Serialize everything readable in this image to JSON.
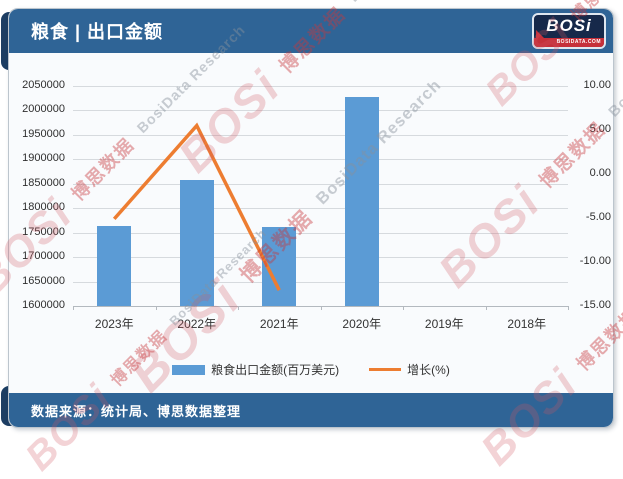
{
  "header": {
    "title": "粮食 | 出口金额"
  },
  "logo": {
    "text": "BOSi",
    "subtext": "BOSIDATA.COM"
  },
  "chart_data": {
    "type": "bar",
    "subtype": "bar+line combo, dual axis",
    "title": "粮食 | 出口金额",
    "categories": [
      "2023年",
      "2022年",
      "2021年",
      "2020年",
      "2019年",
      "2018年"
    ],
    "series": [
      {
        "name": "粮食出口金额(百万美元)",
        "type": "bar",
        "axis": "left",
        "color": "#5B9BD5",
        "values": [
          1763000,
          1858000,
          1761000,
          2028000,
          null,
          null
        ]
      },
      {
        "name": "增长(%)",
        "type": "line",
        "axis": "right",
        "color": "#ED7D31",
        "values": [
          -5.1,
          5.5,
          -13.2,
          null,
          null,
          null
        ]
      }
    ],
    "left_axis": {
      "min": 1600000,
      "max": 2050000,
      "step": 50000,
      "ticks": [
        "2050000",
        "2000000",
        "1950000",
        "1900000",
        "1850000",
        "1800000",
        "1750000",
        "1700000",
        "1650000",
        "1600000"
      ]
    },
    "right_axis": {
      "min": -15,
      "max": 10,
      "step": 5,
      "ticks": [
        "10.00",
        "5.00",
        "0.00",
        "-5.00",
        "-10.00",
        "-15.00"
      ]
    },
    "grid": true,
    "legend_position": "bottom"
  },
  "legend": {
    "bar_label": "粮食出口金额(百万美元)",
    "line_label": "增长(%)"
  },
  "footer": {
    "source_text": "数据来源：统计局、博思数据整理"
  },
  "watermark": {
    "logo_text": "BOSi",
    "cn_text": "博思数据",
    "en_text": "BosiData Research"
  },
  "colors": {
    "header_bg": "#2f6496",
    "bar": "#5B9BD5",
    "line": "#ED7D31",
    "logo_bg": "#16294a",
    "logo_red": "#c5303a"
  }
}
